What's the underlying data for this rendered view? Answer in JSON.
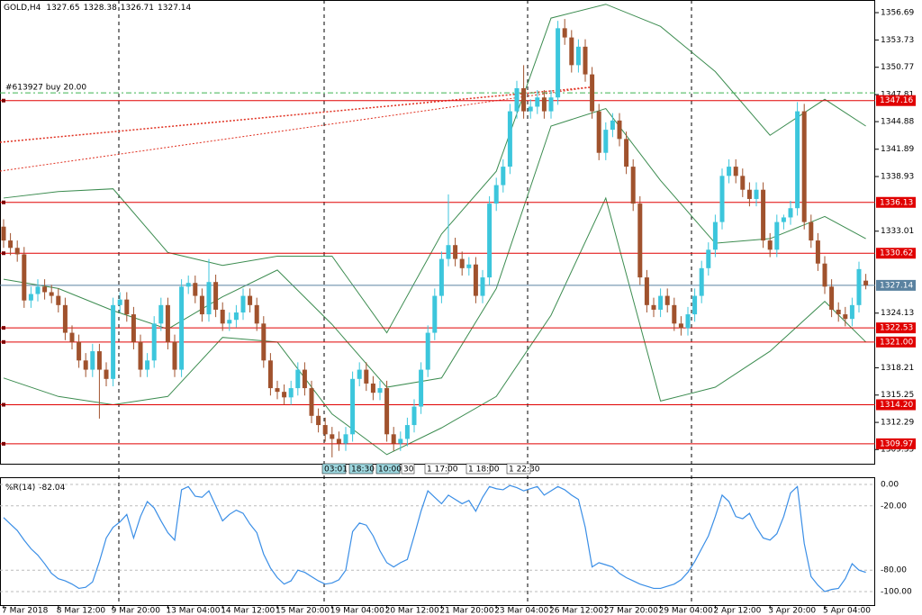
{
  "chart_data": [
    {
      "type": "candlestick",
      "symbol": "GOLD,H4",
      "ohlc_header": [
        1327.65,
        1328.38,
        1326.71,
        1327.14
      ],
      "categories": [
        "7 Mar 2018",
        null,
        null,
        null,
        null,
        null,
        null,
        null,
        "8 Mar 12:00",
        null,
        null,
        null,
        null,
        null,
        null,
        null,
        "9 Mar 20:00",
        null,
        null,
        null,
        null,
        null,
        null,
        null,
        "13 Mar 04:00",
        null,
        null,
        null,
        null,
        null,
        null,
        null,
        "14 Mar 12:00",
        null,
        null,
        null,
        null,
        null,
        null,
        null,
        "15 Mar 20:00",
        null,
        null,
        null,
        null,
        null,
        null,
        null,
        "19 Mar 04:00",
        null,
        null,
        null,
        null,
        null,
        null,
        null,
        "20 Mar 12:00",
        null,
        null,
        null,
        null,
        null,
        null,
        null,
        "21 Mar 20:00",
        null,
        null,
        null,
        null,
        null,
        null,
        null,
        "23 Mar 04:00",
        null,
        null,
        null,
        null,
        null,
        null,
        null,
        "26 Mar 12:00",
        null,
        null,
        null,
        null,
        null,
        null,
        null,
        "27 Mar 20:00",
        null,
        null,
        null,
        null,
        null,
        null,
        null,
        "29 Mar 04:00",
        null,
        null,
        null,
        null,
        null,
        null,
        null,
        "2 Apr 12:00",
        null,
        null,
        null,
        null,
        null,
        null,
        null,
        "3 Apr 20:00",
        null,
        null,
        null,
        null,
        null,
        null,
        null,
        "5 Apr 04:00",
        null,
        null,
        null,
        null,
        null,
        null
      ],
      "open": [
        1333.5,
        1332.0,
        1331.2,
        1330.5,
        1325.5,
        1326.2,
        1327.0,
        1326.4,
        1326.0,
        1325.0,
        1322.0,
        1321.0,
        1319.0,
        1318.0,
        1320.0,
        1318.0,
        1317.0,
        1325.0,
        1325.6,
        1324.0,
        1321.0,
        1318.0,
        1319.0,
        1323.0,
        1325.0,
        1321.0,
        1318.0,
        1327.0,
        1327.4,
        1326.0,
        1324.0,
        1327.5,
        1324.5,
        1323.0,
        1323.4,
        1324.2,
        1326.0,
        1325.0,
        1323.0,
        1319.0,
        1316.0,
        1315.6,
        1315.0,
        1316.0,
        1318.0,
        1316.0,
        1313.0,
        1312.0,
        1311.0,
        1310.5,
        1310.0,
        1311.0,
        1317.0,
        1318.0,
        1316.5,
        1315.5,
        1316.0,
        1311.0,
        1310.0,
        1310.5,
        1312.0,
        1314.0,
        1318.0,
        1322.0,
        1326.0,
        1330.0,
        1331.5,
        1330.0,
        1329.0,
        1329.4,
        1326.0,
        1328.0,
        1336.0,
        1338.0,
        1340.0,
        1346.0,
        1348.5,
        1346.0,
        1346.5,
        1347.5,
        1346.0,
        1347.5,
        1355.0,
        1354.0,
        1351.0,
        1353.0,
        1350.0,
        1346.0,
        1341.5,
        1344.0,
        1345.0,
        1343.0,
        1340.0,
        1336.0,
        1328.0,
        1325.0,
        1324.5,
        1326.0,
        1325.0,
        1323.0,
        1322.5,
        1324.0,
        1326.0,
        1329.0,
        1331.0,
        1334.0,
        1339.0,
        1340.0,
        1339.0,
        1337.5,
        1336.5,
        1337.5,
        1332.0,
        1331.0,
        1334.0,
        1334.5,
        1335.5,
        1346.0,
        1334.0,
        1332.0,
        1329.5,
        1327.0,
        1324.5,
        1324.0,
        1323.5,
        1325.0,
        1327.65
      ],
      "high": [
        1334.3,
        1332.8,
        1332.0,
        1331.3,
        1327.0,
        1327.8,
        1327.8,
        1327.2,
        1326.8,
        1325.8,
        1322.8,
        1321.8,
        1319.8,
        1320.8,
        1320.8,
        1318.8,
        1325.8,
        1326.4,
        1326.4,
        1324.8,
        1321.8,
        1319.8,
        1323.8,
        1325.8,
        1325.8,
        1321.8,
        1327.8,
        1328.2,
        1328.2,
        1326.8,
        1330.0,
        1328.3,
        1325.3,
        1324.2,
        1325.0,
        1326.8,
        1326.8,
        1325.8,
        1323.8,
        1319.8,
        1316.8,
        1316.4,
        1316.8,
        1318.8,
        1318.8,
        1316.8,
        1313.8,
        1312.8,
        1311.8,
        1311.3,
        1311.8,
        1317.8,
        1318.8,
        1318.8,
        1317.3,
        1316.8,
        1316.8,
        1311.8,
        1311.3,
        1312.8,
        1314.8,
        1318.8,
        1322.8,
        1326.8,
        1330.8,
        1337.0,
        1332.3,
        1330.8,
        1330.2,
        1330.2,
        1328.8,
        1336.8,
        1338.8,
        1340.8,
        1346.8,
        1349.3,
        1351.0,
        1347.3,
        1348.3,
        1348.3,
        1348.3,
        1355.8,
        1356.0,
        1354.8,
        1353.8,
        1353.8,
        1350.8,
        1346.8,
        1344.8,
        1345.8,
        1345.8,
        1343.8,
        1340.8,
        1336.8,
        1328.8,
        1325.8,
        1326.8,
        1326.8,
        1325.8,
        1323.8,
        1324.8,
        1326.8,
        1329.8,
        1331.8,
        1334.8,
        1339.8,
        1340.8,
        1340.8,
        1339.8,
        1338.3,
        1338.3,
        1338.3,
        1332.8,
        1334.8,
        1334.8,
        1336.3,
        1347.0,
        1346.8,
        1334.8,
        1332.8,
        1330.3,
        1327.8,
        1325.3,
        1324.8,
        1325.8,
        1329.7,
        1328.38
      ],
      "low": [
        1331.2,
        1330.4,
        1329.7,
        1324.7,
        1324.7,
        1325.4,
        1325.6,
        1325.2,
        1324.2,
        1321.2,
        1320.2,
        1318.2,
        1317.2,
        1317.2,
        1312.7,
        1316.2,
        1316.2,
        1324.2,
        1323.2,
        1320.2,
        1317.2,
        1317.2,
        1318.2,
        1322.2,
        1320.2,
        1317.2,
        1317.2,
        1326.2,
        1325.2,
        1323.2,
        1323.2,
        1323.7,
        1322.2,
        1322.2,
        1322.6,
        1323.4,
        1324.2,
        1322.2,
        1318.2,
        1315.2,
        1314.8,
        1314.2,
        1314.2,
        1315.2,
        1315.2,
        1312.2,
        1311.2,
        1310.2,
        1308.5,
        1309.2,
        1309.2,
        1310.2,
        1316.2,
        1315.7,
        1314.7,
        1314.7,
        1310.2,
        1309.2,
        1309.2,
        1309.7,
        1311.2,
        1313.2,
        1317.2,
        1321.2,
        1325.2,
        1329.2,
        1329.2,
        1328.2,
        1328.2,
        1325.2,
        1325.2,
        1327.2,
        1335.2,
        1337.2,
        1339.2,
        1345.2,
        1345.2,
        1345.2,
        1345.7,
        1345.2,
        1345.2,
        1346.7,
        1353.2,
        1350.2,
        1350.2,
        1349.2,
        1345.2,
        1340.7,
        1340.7,
        1343.2,
        1342.2,
        1339.2,
        1335.2,
        1327.2,
        1324.2,
        1323.7,
        1323.7,
        1324.2,
        1322.2,
        1321.7,
        1321.7,
        1323.2,
        1325.2,
        1328.2,
        1330.2,
        1333.2,
        1338.2,
        1338.2,
        1336.7,
        1335.7,
        1335.7,
        1331.2,
        1330.2,
        1330.2,
        1333.2,
        1333.7,
        1334.7,
        1333.2,
        1331.2,
        1328.7,
        1326.2,
        1323.7,
        1323.2,
        1322.7,
        1322.7,
        1324.2,
        1326.71
      ],
      "close": [
        1332.0,
        1331.2,
        1330.5,
        1325.5,
        1326.2,
        1327.0,
        1326.4,
        1326.0,
        1325.0,
        1322.0,
        1321.0,
        1319.0,
        1318.0,
        1320.0,
        1318.0,
        1317.0,
        1325.0,
        1325.6,
        1324.0,
        1321.0,
        1318.0,
        1319.0,
        1323.0,
        1325.0,
        1321.0,
        1318.0,
        1327.0,
        1327.4,
        1326.0,
        1324.0,
        1327.5,
        1324.5,
        1323.0,
        1323.4,
        1324.2,
        1326.0,
        1325.0,
        1323.0,
        1319.0,
        1316.0,
        1315.6,
        1315.0,
        1316.0,
        1318.0,
        1316.0,
        1313.0,
        1312.0,
        1311.0,
        1310.5,
        1310.0,
        1311.0,
        1317.0,
        1318.0,
        1316.5,
        1315.5,
        1316.0,
        1311.0,
        1310.0,
        1310.5,
        1312.0,
        1314.0,
        1318.0,
        1322.0,
        1326.0,
        1330.0,
        1331.5,
        1330.0,
        1329.0,
        1329.4,
        1326.0,
        1328.0,
        1336.0,
        1338.0,
        1340.0,
        1346.0,
        1348.5,
        1346.0,
        1346.5,
        1347.5,
        1346.0,
        1347.5,
        1355.0,
        1354.0,
        1351.0,
        1353.0,
        1350.0,
        1346.0,
        1341.5,
        1344.0,
        1345.0,
        1343.0,
        1340.0,
        1336.0,
        1328.0,
        1325.0,
        1324.5,
        1326.0,
        1325.0,
        1323.0,
        1322.5,
        1324.0,
        1326.0,
        1329.0,
        1331.0,
        1334.0,
        1339.0,
        1340.0,
        1339.0,
        1337.5,
        1336.5,
        1337.5,
        1332.0,
        1331.0,
        1334.0,
        1334.5,
        1335.5,
        1346.0,
        1334.0,
        1332.0,
        1329.5,
        1327.0,
        1324.5,
        1324.0,
        1323.5,
        1325.0,
        1328.9,
        1327.14
      ],
      "up_color": "#3cc6dc",
      "down_color": "#a0522d",
      "bands": {
        "color": "#3c8c50",
        "x": [
          0,
          8,
          16,
          24,
          32,
          40,
          48,
          56,
          64,
          72,
          80,
          88,
          96,
          104,
          112,
          120,
          126
        ],
        "upper": [
          1336.6,
          1337.3,
          1337.6,
          1330.7,
          1329.3,
          1330.3,
          1330.3,
          1322.0,
          1332.7,
          1339.5,
          1356.1,
          1357.6,
          1355.2,
          1350.3,
          1343.4,
          1347.3,
          1344.4
        ],
        "middle": [
          1327.8,
          1326.8,
          1324.4,
          1322.4,
          1325.9,
          1328.8,
          1322.9,
          1316.1,
          1317.1,
          1326.8,
          1344.4,
          1346.3,
          1338.5,
          1331.7,
          1332.2,
          1334.6,
          1332.2
        ],
        "lower": [
          1317.1,
          1315.1,
          1314.2,
          1315.1,
          1321.5,
          1321.0,
          1313.2,
          1308.8,
          1311.7,
          1315.1,
          1323.9,
          1336.6,
          1314.6,
          1316.1,
          1320.0,
          1325.4,
          1321.0
        ]
      },
      "levels": [
        1347.16,
        1336.13,
        1330.62,
        1322.53,
        {
          "value": 1321.0,
          "label": "1321.00"
        },
        {
          "value": 1314.2,
          "label": "1314.20"
        },
        1309.97
      ],
      "level_color": "#e00000",
      "current_price": 1327.14,
      "order_line": {
        "label": "#613927 buy 20.00",
        "value": 1348.0,
        "color": "#3cb450"
      },
      "object_labels": [
        "03:01",
        "18:30",
        "10:00",
        "30",
        "1 17:00",
        "1 18:00",
        "1 22:30"
      ],
      "ylim": [
        1307.81,
        1358.06
      ],
      "yticks": [
        1356.69,
        1353.73,
        1350.77,
        1347.81,
        1344.88,
        1341.89,
        1338.93,
        1333.01,
        1324.13,
        1318.21,
        1315.25,
        1312.29,
        1309.35
      ]
    },
    {
      "type": "line",
      "title": "%R(14)",
      "last": -82.04,
      "color": "#3a8ee6",
      "values": [
        -31,
        -37,
        -43,
        -52,
        -60,
        -66,
        -74,
        -83,
        -88,
        -90,
        -93,
        -97,
        -96,
        -91,
        -72,
        -50,
        -40,
        -35,
        -28,
        -50,
        -30,
        -16,
        -22,
        -34,
        -45,
        -52,
        -5,
        -2,
        -11,
        -12,
        -6,
        -20,
        -34,
        -28,
        -24,
        -27,
        -37,
        -45,
        -65,
        -78,
        -87,
        -93,
        -90,
        -80,
        -82,
        -86,
        -90,
        -93,
        -92,
        -89,
        -80,
        -44,
        -36,
        -38,
        -48,
        -62,
        -73,
        -77,
        -73,
        -70,
        -48,
        -25,
        -6,
        -12,
        -18,
        -10,
        -14,
        -18,
        -15,
        -25,
        -12,
        -2,
        -4,
        -5,
        -1,
        -3,
        -6,
        -4,
        -2,
        -10,
        -6,
        -2,
        -5,
        -10,
        -14,
        -40,
        -77,
        -73,
        -75,
        -77,
        -83,
        -87,
        -90,
        -93,
        -95,
        -97,
        -97,
        -95,
        -93,
        -89,
        -82,
        -72,
        -60,
        -48,
        -30,
        -10,
        -16,
        -30,
        -32,
        -27,
        -40,
        -50,
        -52,
        -46,
        -30,
        -8,
        -2,
        -55,
        -86,
        -94,
        -100,
        -98,
        -97,
        -88,
        -74,
        -80,
        -82.04
      ],
      "ylim": [
        -112.6,
        6.7
      ],
      "yticks": [
        {
          "value": 0,
          "label": "0.00"
        },
        {
          "value": -20,
          "label": "-20.00"
        },
        {
          "value": -80,
          "label": "-80.00"
        },
        {
          "value": -100,
          "label": "-100.00"
        }
      ]
    }
  ]
}
